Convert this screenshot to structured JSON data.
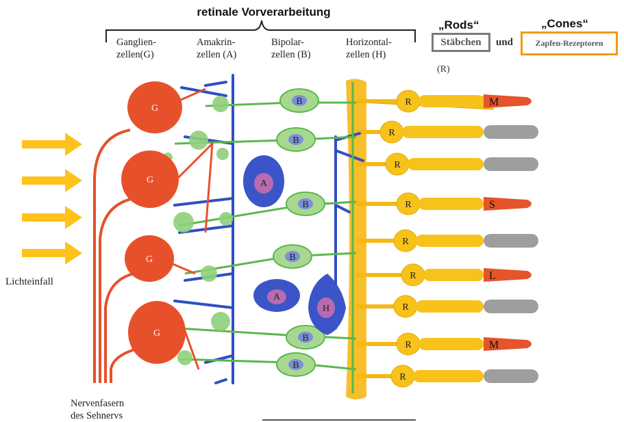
{
  "title": "retinale Vorverarbeitung",
  "columns": {
    "ganglion": {
      "line1": "Ganglien-",
      "line2": "zellen(G)"
    },
    "amakrin": {
      "line1": "Amakrin-",
      "line2": "zellen (A)"
    },
    "bipolar": {
      "line1": "Bipolar-",
      "line2": "zellen (B)"
    },
    "horizontal": {
      "line1": "Horizontal-",
      "line2": "zellen (H)"
    }
  },
  "rods": {
    "label": "„Rods“",
    "box_text": "Stäbchen",
    "note": "(R)"
  },
  "connector": "und",
  "cones": {
    "label": "„Cones“",
    "box_text": "Zapfen-Rezeptoren"
  },
  "left_label": "Lichteinfall",
  "bottom_label": {
    "line1": "Nervenfasern",
    "line2": "des Sehnervs"
  },
  "cell_letters": {
    "ganglion": "G",
    "amakrin": "A",
    "bipolar": "B",
    "horizontal": "H",
    "rod": "R"
  },
  "cone_types": [
    "M",
    "S",
    "L",
    "M"
  ],
  "colors": {
    "ganglion": "#e6512b",
    "amakrin": "#2f4fc4",
    "bipolar": "#59b84d",
    "horizontal": "#2f4fc4",
    "receptor": "#f7c21a",
    "cone_tip": "#e5542a",
    "rod_tip": "#9e9e9e",
    "arrow": "#ffc21a"
  }
}
